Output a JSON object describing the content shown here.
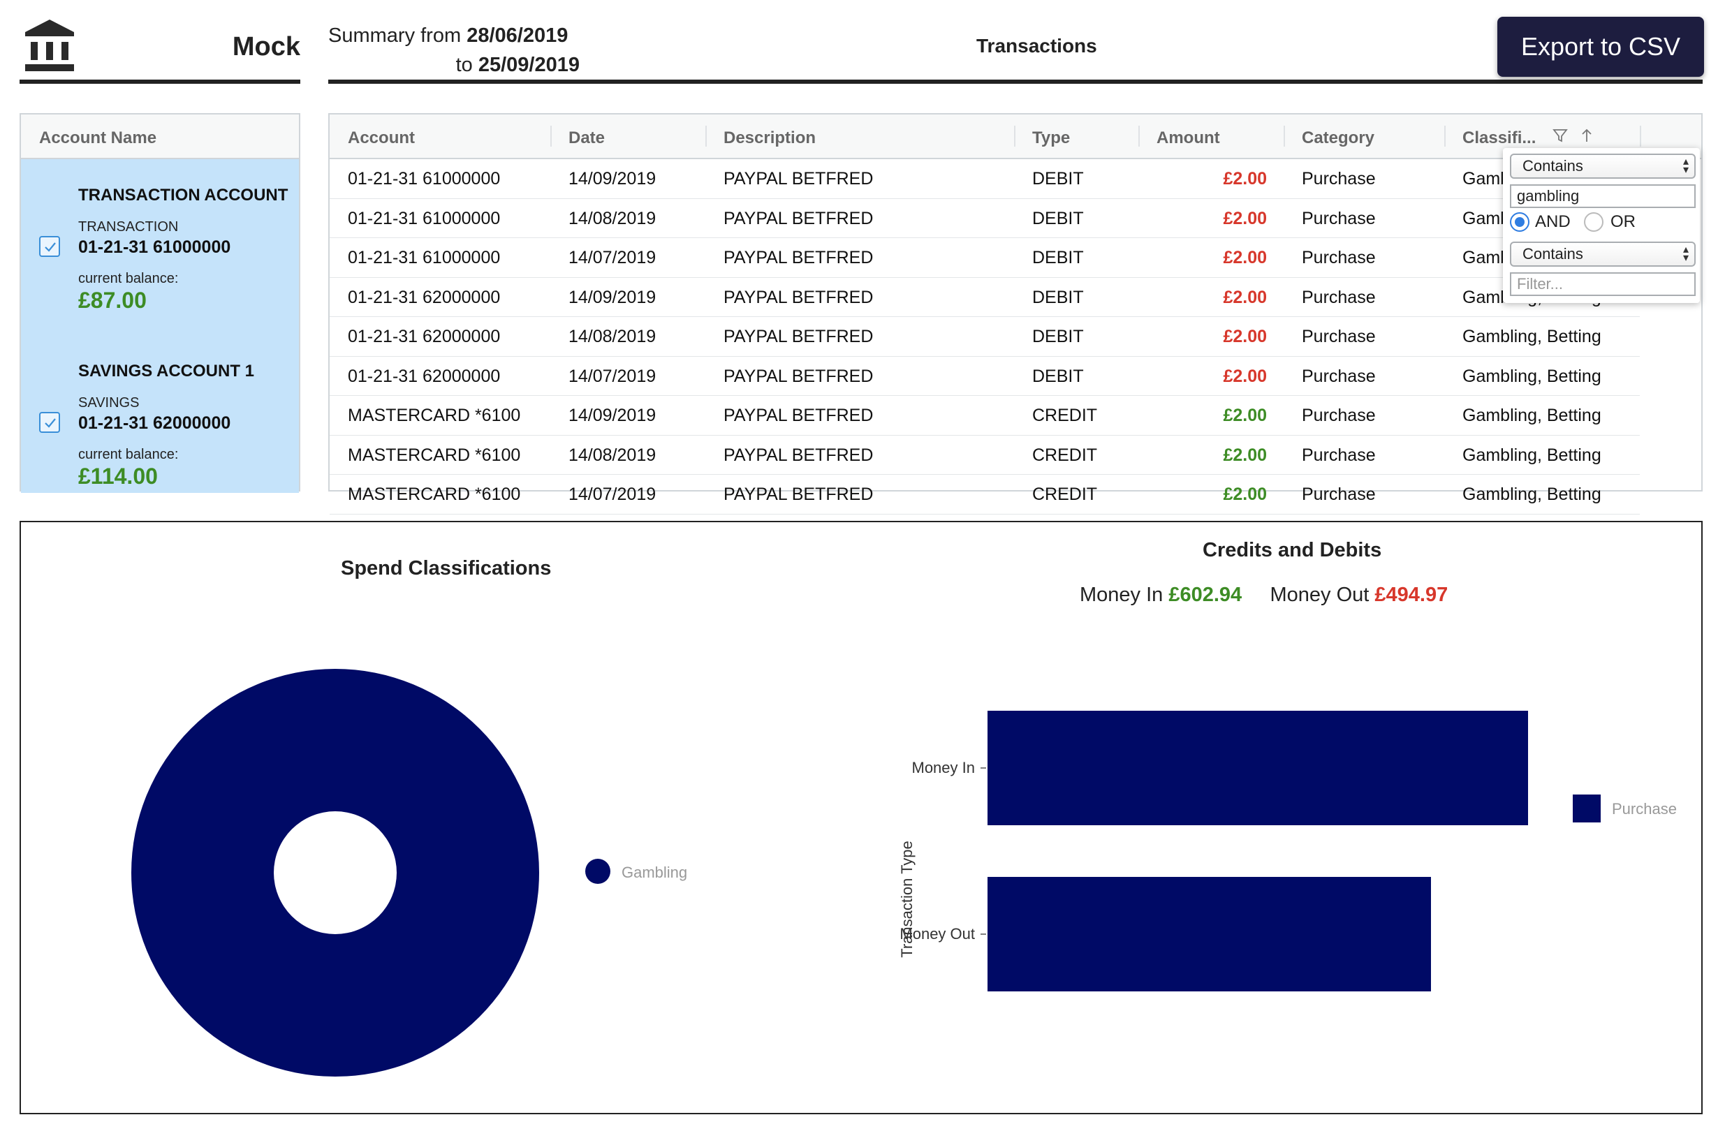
{
  "header": {
    "brand": "Mock",
    "summary_prefix": "Summary from",
    "date_from": "28/06/2019",
    "summary_to": "to",
    "date_to": "25/09/2019",
    "title": "Transactions",
    "export_label": "Export to CSV"
  },
  "accounts_panel": {
    "header": "Account Name",
    "accounts": [
      {
        "name": "TRANSACTION ACCOUNT",
        "type": "TRANSACTION",
        "number": "01-21-31 61000000",
        "balance_label": "current balance:",
        "balance": "£87.00",
        "checked": true
      },
      {
        "name": "SAVINGS ACCOUNT 1",
        "type": "SAVINGS",
        "number": "01-21-31 62000000",
        "balance_label": "current balance:",
        "balance": "£114.00",
        "checked": true
      }
    ]
  },
  "grid": {
    "columns": [
      "Account",
      "Date",
      "Description",
      "Type",
      "Amount",
      "Category",
      "Classifi..."
    ],
    "rows": [
      {
        "account": "01-21-31 61000000",
        "date": "14/09/2019",
        "description": "PAYPAL BETFRED",
        "type": "DEBIT",
        "amount": "£2.00",
        "category": "Purchase",
        "classification": "Gambling, Betting"
      },
      {
        "account": "01-21-31 61000000",
        "date": "14/08/2019",
        "description": "PAYPAL BETFRED",
        "type": "DEBIT",
        "amount": "£2.00",
        "category": "Purchase",
        "classification": "Gambling, Betting"
      },
      {
        "account": "01-21-31 61000000",
        "date": "14/07/2019",
        "description": "PAYPAL BETFRED",
        "type": "DEBIT",
        "amount": "£2.00",
        "category": "Purchase",
        "classification": "Gambling, Betting"
      },
      {
        "account": "01-21-31 62000000",
        "date": "14/09/2019",
        "description": "PAYPAL BETFRED",
        "type": "DEBIT",
        "amount": "£2.00",
        "category": "Purchase",
        "classification": "Gambling, Betting"
      },
      {
        "account": "01-21-31 62000000",
        "date": "14/08/2019",
        "description": "PAYPAL BETFRED",
        "type": "DEBIT",
        "amount": "£2.00",
        "category": "Purchase",
        "classification": "Gambling, Betting"
      },
      {
        "account": "01-21-31 62000000",
        "date": "14/07/2019",
        "description": "PAYPAL BETFRED",
        "type": "DEBIT",
        "amount": "£2.00",
        "category": "Purchase",
        "classification": "Gambling, Betting"
      },
      {
        "account": "MASTERCARD *6100",
        "date": "14/09/2019",
        "description": "PAYPAL BETFRED",
        "type": "CREDIT",
        "amount": "£2.00",
        "category": "Purchase",
        "classification": "Gambling, Betting"
      },
      {
        "account": "MASTERCARD *6100",
        "date": "14/08/2019",
        "description": "PAYPAL BETFRED",
        "type": "CREDIT",
        "amount": "£2.00",
        "category": "Purchase",
        "classification": "Gambling, Betting"
      },
      {
        "account": "MASTERCARD *6100",
        "date": "14/07/2019",
        "description": "PAYPAL BETFRED",
        "type": "CREDIT",
        "amount": "£2.00",
        "category": "Purchase",
        "classification": "Gambling, Betting"
      }
    ]
  },
  "filter_popup": {
    "condition1": "Contains",
    "value1": "gambling",
    "and_label": "AND",
    "or_label": "OR",
    "operator": "AND",
    "condition2": "Contains",
    "placeholder2": "Filter..."
  },
  "colors": {
    "chart_navy": "#000a66",
    "credit_green": "#3d8c25",
    "debit_red": "#d7372b",
    "account_bg": "#c5e3fa",
    "export_bg": "#1d1d3f"
  },
  "summary": {
    "money_in_label": "Money In",
    "money_in": "£602.94",
    "money_out_label": "Money Out",
    "money_out": "£494.97"
  },
  "chart_data": [
    {
      "type": "pie",
      "title": "Spend Classifications",
      "labels": [
        "Gambling"
      ],
      "values": [
        494.97
      ],
      "legend": "right"
    },
    {
      "type": "bar",
      "orientation": "horizontal",
      "title": "Credits and Debits",
      "ylabel": "Transaction Type",
      "categories": [
        "Money In",
        "Money Out"
      ],
      "series": [
        {
          "name": "Purchase",
          "values": [
            602.94,
            494.97
          ]
        }
      ],
      "xlim": [
        0,
        602.94
      ],
      "legend": "right"
    }
  ]
}
